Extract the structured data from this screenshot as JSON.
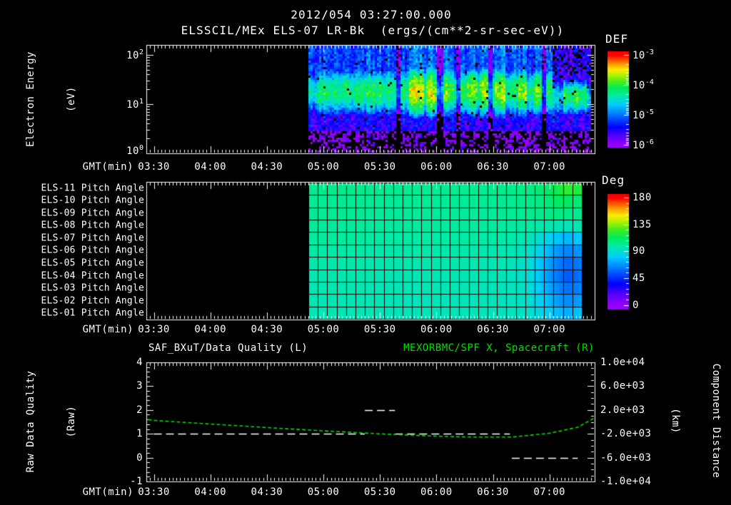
{
  "colors": {
    "background": "#000000",
    "text": "#ffffff",
    "series_green": "#00dd00"
  },
  "header": {
    "datetime": "2012/054 03:27:00.000",
    "instrument_line": "ELSSCIL/MEx ELS-07 LR-Bk  (ergs/(cm**2-sr-sec-eV))"
  },
  "time_axis": {
    "label": "GMT(min)",
    "tick_labels": [
      "03:30",
      "04:00",
      "04:30",
      "05:00",
      "05:30",
      "06:00",
      "06:30",
      "07:00"
    ],
    "start_gmt": "03:26",
    "end_gmt": "07:24",
    "minor_tick_minutes": 2,
    "major_tick_minutes": 30
  },
  "spectrogram_panel": {
    "ylabel_line1": "Electron Energy",
    "ylabel_line2": "(eV)",
    "ytick_base": "10",
    "ytick_exponents": [
      "2",
      "1",
      "0"
    ],
    "colorbar": {
      "title": "DEF",
      "tick_base": "10",
      "tick_exponents": [
        "-3",
        "-4",
        "-5",
        "-6"
      ]
    }
  },
  "pitch_panel": {
    "row_labels": [
      "ELS-11 Pitch Angle",
      "ELS-10 Pitch Angle",
      "ELS-09 Pitch Angle",
      "ELS-08 Pitch Angle",
      "ELS-07 Pitch Angle",
      "ELS-06 Pitch Angle",
      "ELS-05 Pitch Angle",
      "ELS-04 Pitch Angle",
      "ELS-03 Pitch Angle",
      "ELS-02 Pitch Angle",
      "ELS-01 Pitch Angle"
    ],
    "colorbar": {
      "title": "Deg",
      "tick_labels": [
        "180",
        "135",
        "90",
        "45",
        "0"
      ]
    }
  },
  "quality_panel": {
    "title_left": "SAF_BXuT/Data Quality (L)",
    "title_right": "MEXORBMC/SPF X, Spacecraft (R)",
    "ylabel_left_line1": "Raw Data Quality",
    "ylabel_left_line2": "(Raw)",
    "ylabel_right_line1": "Component Distance",
    "ylabel_right_line2": "(km)",
    "ytick_labels_left": [
      "4",
      "3",
      "2",
      "1",
      "0",
      "-1"
    ],
    "ytick_labels_right": [
      "1.0e+04",
      "6.0e+03",
      "2.0e+03",
      "-2.0e+03",
      "-6.0e+03",
      "-1.0e+04"
    ]
  },
  "chart_data": [
    {
      "id": "electron-energy-spectrogram",
      "type": "heatmap",
      "title": "ELSSCIL/MEx ELS-07 LR-Bk",
      "value_units": "ergs/(cm**2-sr-sec-eV)",
      "x_start_gmt": "03:26",
      "x_end_gmt": "07:24",
      "data_start_gmt": "04:52",
      "data_end_gmt": "07:22",
      "y_axis": {
        "label": "Electron Energy (eV)",
        "scale": "log",
        "min_ev": 1,
        "max_ev": 160
      },
      "color_axis": {
        "label": "DEF",
        "log10_min": -6,
        "log10_max": -3
      },
      "main_band": {
        "center_ev": 18,
        "sigma_log10": 0.3,
        "peak_log10_flux": -4.15,
        "initial_peak_log10_flux": -4.45
      },
      "halo_band": {
        "ev_range": [
          28,
          180
        ],
        "log10_flux": -5.15
      },
      "low_band": {
        "ev_range": [
          2.8,
          9.5
        ],
        "log10_flux": -5.5
      },
      "floor_band": {
        "ev_range": [
          1,
          2.8
        ],
        "log10_flux": -6.0,
        "fill_fraction": 0.5
      },
      "bursts": [
        {
          "from": "05:46",
          "to": "05:53",
          "boost_log10": 0.5
        },
        {
          "from": "05:54",
          "to": "06:00",
          "boost_log10": 0.55
        },
        {
          "from": "06:03",
          "to": "06:07",
          "boost_log10": 0.35
        },
        {
          "from": "06:16",
          "to": "06:22",
          "boost_log10": 0.4
        },
        {
          "from": "06:23",
          "to": "06:28",
          "boost_log10": 0.45
        },
        {
          "from": "06:31",
          "to": "06:37",
          "boost_log10": 0.4
        },
        {
          "from": "06:43",
          "to": "06:48",
          "boost_log10": 0.35
        },
        {
          "from": "06:51",
          "to": "06:55",
          "boost_log10": 0.28
        }
      ],
      "dropout_columns_gmt": [
        "05:40",
        "06:02",
        "06:12",
        "06:29",
        "06:57"
      ],
      "fade": {
        "after_gmt": "07:02",
        "center_ev": 13,
        "peak_log10_flux": -4.6
      },
      "late_blob": {
        "from": "07:07",
        "to": "07:20",
        "center_ev": 14,
        "peak_log10_flux": -4.05
      }
    },
    {
      "id": "pitch-angle-panels",
      "type": "heatmap",
      "rows": [
        "ELS-11",
        "ELS-10",
        "ELS-09",
        "ELS-08",
        "ELS-07",
        "ELS-06",
        "ELS-05",
        "ELS-04",
        "ELS-03",
        "ELS-02",
        "ELS-01"
      ],
      "units": "deg",
      "color_axis": {
        "label": "Deg",
        "min": 0,
        "max": 180
      },
      "data_start_gmt": "04:52",
      "data_end_gmt": "07:17",
      "n_time_bins": 29,
      "values_deg": [
        [
          104,
          104,
          104,
          104,
          104,
          104,
          103,
          103,
          103,
          103,
          103,
          103,
          103,
          103,
          103,
          103,
          103,
          103,
          103,
          104,
          104,
          104,
          105,
          106,
          108,
          112,
          118,
          124,
          119
        ],
        [
          103,
          103,
          103,
          103,
          103,
          103,
          102,
          102,
          102,
          102,
          102,
          102,
          102,
          102,
          102,
          102,
          102,
          102,
          102,
          103,
          103,
          103,
          104,
          105,
          106,
          109,
          113,
          113,
          109
        ],
        [
          102,
          102,
          102,
          102,
          102,
          102,
          101,
          101,
          101,
          101,
          101,
          101,
          101,
          101,
          101,
          101,
          101,
          101,
          101,
          101,
          102,
          102,
          102,
          103,
          104,
          105,
          106,
          105,
          103
        ],
        [
          101,
          101,
          101,
          101,
          101,
          101,
          100,
          100,
          100,
          100,
          100,
          100,
          100,
          100,
          100,
          100,
          100,
          100,
          100,
          100,
          100,
          100,
          100,
          99,
          98,
          97,
          96,
          95,
          96
        ],
        [
          100,
          100,
          100,
          100,
          100,
          100,
          99,
          99,
          99,
          99,
          99,
          99,
          99,
          99,
          99,
          99,
          99,
          99,
          99,
          99,
          98,
          98,
          97,
          95,
          90,
          84,
          79,
          76,
          80
        ],
        [
          99,
          99,
          99,
          99,
          99,
          99,
          98,
          98,
          98,
          98,
          98,
          98,
          98,
          98,
          98,
          98,
          98,
          98,
          97,
          97,
          97,
          96,
          95,
          91,
          84,
          76,
          69,
          65,
          68
        ],
        [
          98,
          98,
          98,
          98,
          98,
          98,
          97,
          97,
          97,
          97,
          97,
          97,
          97,
          97,
          97,
          97,
          97,
          97,
          96,
          96,
          96,
          95,
          93,
          89,
          80,
          71,
          63,
          58,
          62
        ],
        [
          97,
          97,
          97,
          97,
          97,
          97,
          97,
          96,
          96,
          96,
          96,
          96,
          96,
          96,
          96,
          96,
          96,
          96,
          96,
          95,
          95,
          94,
          92,
          88,
          79,
          69,
          61,
          55,
          60
        ],
        [
          97,
          97,
          97,
          97,
          97,
          97,
          96,
          96,
          96,
          96,
          96,
          96,
          96,
          96,
          96,
          96,
          96,
          96,
          95,
          95,
          95,
          94,
          93,
          89,
          81,
          72,
          65,
          60,
          64
        ],
        [
          96,
          96,
          96,
          96,
          96,
          96,
          96,
          96,
          95,
          95,
          95,
          95,
          95,
          95,
          95,
          95,
          95,
          95,
          95,
          95,
          94,
          94,
          93,
          90,
          84,
          77,
          70,
          66,
          70
        ],
        [
          96,
          96,
          96,
          96,
          96,
          96,
          96,
          95,
          95,
          95,
          95,
          95,
          95,
          95,
          95,
          95,
          95,
          95,
          95,
          94,
          94,
          94,
          93,
          91,
          87,
          82,
          77,
          74,
          78
        ]
      ]
    },
    {
      "id": "quality-and-distance",
      "type": "line",
      "x_axis_label": "GMT(min)",
      "left_axis": {
        "label": "Raw Data Quality (Raw)",
        "range": [
          -1,
          4
        ]
      },
      "right_axis": {
        "label": "Component Distance (km)",
        "range": [
          -10000,
          10000
        ]
      },
      "series": [
        {
          "name": "SAF_BXuT/Data Quality",
          "axis": "left",
          "color": "#ffffff",
          "style": "dashed-steps",
          "segments": [
            {
              "from": "03:30",
              "to": "05:22",
              "value": 1
            },
            {
              "from": "05:22",
              "to": "05:38",
              "value": 2
            },
            {
              "from": "05:38",
              "to": "06:39",
              "value": 1
            },
            {
              "from": "06:40",
              "to": "07:15",
              "value": 0
            }
          ]
        },
        {
          "name": "MEXORBMC/SPF X, Spacecraft",
          "axis": "right",
          "color": "#00dd00",
          "style": "dashed",
          "points": [
            {
              "t": "03:27",
              "km": 400
            },
            {
              "t": "03:30",
              "km": 250
            },
            {
              "t": "04:00",
              "km": -350
            },
            {
              "t": "04:30",
              "km": -950
            },
            {
              "t": "05:00",
              "km": -1500
            },
            {
              "t": "05:30",
              "km": -2000
            },
            {
              "t": "06:00",
              "km": -2400
            },
            {
              "t": "06:20",
              "km": -2550
            },
            {
              "t": "06:40",
              "km": -2550
            },
            {
              "t": "07:00",
              "km": -1900
            },
            {
              "t": "07:15",
              "km": -900
            },
            {
              "t": "07:24",
              "km": 700
            }
          ]
        }
      ]
    }
  ]
}
